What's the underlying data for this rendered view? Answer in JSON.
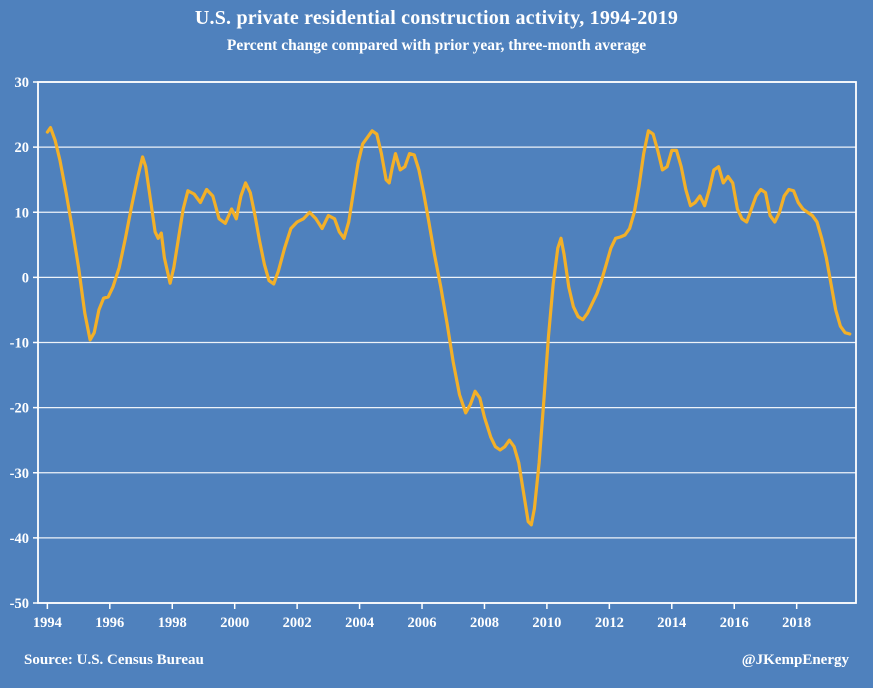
{
  "chart_data": {
    "type": "line",
    "title": "U.S. private residential construction activity, 1994-2019",
    "subtitle": "Percent change compared with prior year, three-month average",
    "source": "Source: U.S. Census Bureau",
    "credit": "@JKempEnergy",
    "xlabel": "",
    "ylabel": "",
    "xlim": [
      1993.7,
      2019.9
    ],
    "ylim": [
      -50,
      30
    ],
    "yticks": [
      30,
      20,
      10,
      0,
      -10,
      -20,
      -30,
      -40,
      -50
    ],
    "xticks": [
      1994,
      1996,
      1998,
      2000,
      2002,
      2004,
      2006,
      2008,
      2010,
      2012,
      2014,
      2016,
      2018
    ],
    "grid": "horizontal",
    "legend": "none",
    "background_color": "#4f81bd",
    "grid_color": "#ffffff",
    "line_color": "#f3b028",
    "series": [
      {
        "points": [
          [
            1994.0,
            22.3
          ],
          [
            1994.1,
            23.0
          ],
          [
            1994.25,
            21.0
          ],
          [
            1994.4,
            18.0
          ],
          [
            1994.6,
            13.0
          ],
          [
            1994.8,
            7.5
          ],
          [
            1995.0,
            1.5
          ],
          [
            1995.2,
            -5.5
          ],
          [
            1995.37,
            -9.6
          ],
          [
            1995.5,
            -8.5
          ],
          [
            1995.65,
            -5.0
          ],
          [
            1995.8,
            -3.2
          ],
          [
            1995.95,
            -3.0
          ],
          [
            1996.1,
            -1.5
          ],
          [
            1996.3,
            1.5
          ],
          [
            1996.5,
            6.0
          ],
          [
            1996.7,
            11.0
          ],
          [
            1996.9,
            15.5
          ],
          [
            1997.05,
            18.5
          ],
          [
            1997.15,
            17.0
          ],
          [
            1997.3,
            12.0
          ],
          [
            1997.45,
            7.0
          ],
          [
            1997.55,
            6.0
          ],
          [
            1997.65,
            6.8
          ],
          [
            1997.75,
            3.0
          ],
          [
            1997.93,
            -0.9
          ],
          [
            1998.05,
            1.5
          ],
          [
            1998.2,
            6.0
          ],
          [
            1998.35,
            10.5
          ],
          [
            1998.5,
            13.3
          ],
          [
            1998.7,
            12.8
          ],
          [
            1998.9,
            11.5
          ],
          [
            1999.1,
            13.5
          ],
          [
            1999.3,
            12.5
          ],
          [
            1999.5,
            9.0
          ],
          [
            1999.7,
            8.3
          ],
          [
            1999.9,
            10.5
          ],
          [
            2000.05,
            9.0
          ],
          [
            2000.2,
            12.5
          ],
          [
            2000.35,
            14.5
          ],
          [
            2000.5,
            13.0
          ],
          [
            2000.65,
            9.5
          ],
          [
            2000.8,
            5.5
          ],
          [
            2000.95,
            2.0
          ],
          [
            2001.1,
            -0.5
          ],
          [
            2001.25,
            -1.0
          ],
          [
            2001.4,
            1.0
          ],
          [
            2001.6,
            4.5
          ],
          [
            2001.8,
            7.5
          ],
          [
            2002.0,
            8.5
          ],
          [
            2002.2,
            9.0
          ],
          [
            2002.4,
            10.0
          ],
          [
            2002.6,
            9.0
          ],
          [
            2002.8,
            7.5
          ],
          [
            2003.0,
            9.5
          ],
          [
            2003.2,
            9.0
          ],
          [
            2003.35,
            7.0
          ],
          [
            2003.5,
            6.0
          ],
          [
            2003.65,
            8.5
          ],
          [
            2003.8,
            13.0
          ],
          [
            2003.95,
            17.5
          ],
          [
            2004.1,
            20.5
          ],
          [
            2004.25,
            21.5
          ],
          [
            2004.4,
            22.5
          ],
          [
            2004.55,
            22.0
          ],
          [
            2004.7,
            19.0
          ],
          [
            2004.85,
            15.0
          ],
          [
            2004.95,
            14.5
          ],
          [
            2005.05,
            17.0
          ],
          [
            2005.15,
            19.0
          ],
          [
            2005.3,
            16.5
          ],
          [
            2005.45,
            17.0
          ],
          [
            2005.6,
            19.0
          ],
          [
            2005.75,
            18.8
          ],
          [
            2005.9,
            16.5
          ],
          [
            2006.05,
            13.0
          ],
          [
            2006.2,
            9.0
          ],
          [
            2006.4,
            3.5
          ],
          [
            2006.6,
            -1.5
          ],
          [
            2006.8,
            -7.0
          ],
          [
            2007.0,
            -13.0
          ],
          [
            2007.2,
            -18.0
          ],
          [
            2007.4,
            -20.8
          ],
          [
            2007.55,
            -19.5
          ],
          [
            2007.7,
            -17.5
          ],
          [
            2007.85,
            -18.5
          ],
          [
            2008.0,
            -21.5
          ],
          [
            2008.2,
            -24.5
          ],
          [
            2008.35,
            -26.0
          ],
          [
            2008.5,
            -26.5
          ],
          [
            2008.65,
            -26.0
          ],
          [
            2008.8,
            -25.0
          ],
          [
            2008.95,
            -26.0
          ],
          [
            2009.1,
            -28.5
          ],
          [
            2009.25,
            -33.0
          ],
          [
            2009.4,
            -37.5
          ],
          [
            2009.5,
            -38.0
          ],
          [
            2009.6,
            -35.5
          ],
          [
            2009.75,
            -28.5
          ],
          [
            2009.9,
            -19.0
          ],
          [
            2010.05,
            -9.0
          ],
          [
            2010.2,
            -1.0
          ],
          [
            2010.35,
            4.5
          ],
          [
            2010.45,
            6.0
          ],
          [
            2010.55,
            3.5
          ],
          [
            2010.7,
            -1.5
          ],
          [
            2010.85,
            -4.5
          ],
          [
            2011.0,
            -6.0
          ],
          [
            2011.15,
            -6.5
          ],
          [
            2011.3,
            -5.5
          ],
          [
            2011.45,
            -4.0
          ],
          [
            2011.6,
            -2.5
          ],
          [
            2011.75,
            -0.5
          ],
          [
            2011.9,
            2.0
          ],
          [
            2012.05,
            4.5
          ],
          [
            2012.2,
            6.0
          ],
          [
            2012.35,
            6.2
          ],
          [
            2012.5,
            6.5
          ],
          [
            2012.65,
            7.5
          ],
          [
            2012.8,
            10.0
          ],
          [
            2012.95,
            14.0
          ],
          [
            2013.1,
            19.0
          ],
          [
            2013.25,
            22.5
          ],
          [
            2013.4,
            22.0
          ],
          [
            2013.55,
            19.5
          ],
          [
            2013.7,
            16.5
          ],
          [
            2013.85,
            17.0
          ],
          [
            2014.0,
            19.5
          ],
          [
            2014.15,
            19.5
          ],
          [
            2014.3,
            17.0
          ],
          [
            2014.45,
            13.5
          ],
          [
            2014.6,
            11.0
          ],
          [
            2014.75,
            11.5
          ],
          [
            2014.9,
            12.5
          ],
          [
            2015.05,
            11.0
          ],
          [
            2015.2,
            13.5
          ],
          [
            2015.35,
            16.5
          ],
          [
            2015.5,
            17.0
          ],
          [
            2015.65,
            14.5
          ],
          [
            2015.8,
            15.5
          ],
          [
            2015.95,
            14.5
          ],
          [
            2016.1,
            10.5
          ],
          [
            2016.25,
            9.0
          ],
          [
            2016.4,
            8.5
          ],
          [
            2016.55,
            10.5
          ],
          [
            2016.7,
            12.5
          ],
          [
            2016.85,
            13.5
          ],
          [
            2017.0,
            13.0
          ],
          [
            2017.15,
            9.5
          ],
          [
            2017.3,
            8.5
          ],
          [
            2017.45,
            10.0
          ],
          [
            2017.6,
            12.5
          ],
          [
            2017.75,
            13.5
          ],
          [
            2017.9,
            13.3
          ],
          [
            2018.05,
            11.5
          ],
          [
            2018.2,
            10.5
          ],
          [
            2018.35,
            10.0
          ],
          [
            2018.5,
            9.5
          ],
          [
            2018.65,
            8.5
          ],
          [
            2018.8,
            6.0
          ],
          [
            2018.95,
            3.0
          ],
          [
            2019.1,
            -1.0
          ],
          [
            2019.25,
            -5.0
          ],
          [
            2019.4,
            -7.5
          ],
          [
            2019.55,
            -8.5
          ],
          [
            2019.7,
            -8.7
          ]
        ]
      }
    ]
  }
}
